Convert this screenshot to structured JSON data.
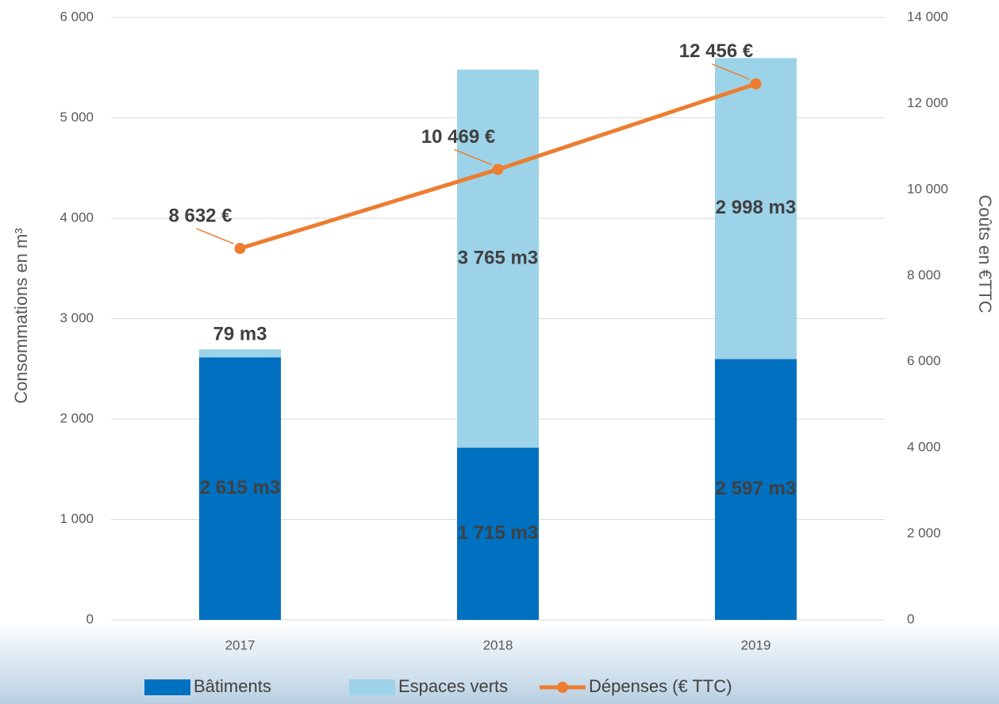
{
  "chart_data": {
    "type": "bar_line",
    "categories": [
      "2017",
      "2018",
      "2019"
    ],
    "y_label": "Consommations en m³",
    "y2_label": "Coûts en €TTC",
    "ylim": [
      0,
      6000
    ],
    "yticks": [
      0,
      {
        "value": 1000,
        "label": "1 000"
      },
      {
        "value": 2000,
        "label": "2 000"
      },
      {
        "value": 3000,
        "label": "3 000"
      },
      {
        "value": 4000,
        "label": "4 000"
      },
      {
        "value": 5000,
        "label": "5 000"
      },
      {
        "value": 6000,
        "label": "6 000"
      }
    ],
    "y2lim": [
      0,
      14000
    ],
    "y2ticks": [
      0,
      {
        "value": 2000,
        "label": "2 000"
      },
      {
        "value": 4000,
        "label": "4 000"
      },
      {
        "value": 6000,
        "label": "6 000"
      },
      {
        "value": 8000,
        "label": "8 000"
      },
      {
        "value": 10000,
        "label": "10 000"
      },
      {
        "value": 12000,
        "label": "12 000"
      },
      {
        "value": 14000,
        "label": "14 000"
      }
    ],
    "grid": true,
    "legend": "bottom",
    "series": [
      {
        "name": "Bâtiments",
        "type": "bar",
        "color": "#0070c0",
        "values": [
          2615,
          1715,
          2597
        ],
        "value_labels": [
          "2 615 m3",
          "1 715 m3",
          "2 597 m3"
        ]
      },
      {
        "name": "Espaces verts",
        "type": "bar",
        "color": "#9dd3e8",
        "values": [
          79,
          3765,
          2998
        ],
        "value_labels": [
          "79 m3",
          "3 765 m3",
          "2 998 m3"
        ]
      },
      {
        "name": "Dépenses (€ TTC)",
        "type": "line",
        "axis": "y2",
        "color": "#ed7d31",
        "values": [
          8632,
          10469,
          12456
        ],
        "value_labels": [
          "8 632 €",
          "10 469 €",
          "12 456 €"
        ]
      }
    ]
  }
}
